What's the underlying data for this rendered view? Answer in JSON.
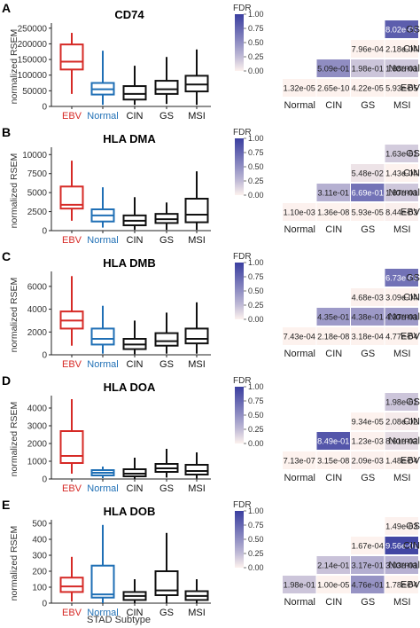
{
  "figure": {
    "x_axis_label": "STAD Subtype",
    "y_axis_label": "normalized RSEM",
    "legend_title": "FDR",
    "legend_ticks": [
      "1.00",
      "0.75",
      "0.50",
      "0.25",
      "0.00"
    ],
    "colors": {
      "EBV": "#d62a26",
      "Normal": "#1f6fb5",
      "CIN": "#111111",
      "GS": "#111111",
      "MSI": "#111111",
      "heat_low": "#fdf2ee",
      "heat_high": "#3b3fa0"
    }
  },
  "chart_data": [
    {
      "panel": "A",
      "type": "box",
      "title": "CD74",
      "categories": [
        "EBV",
        "Normal",
        "CIN",
        "GS",
        "MSI"
      ],
      "yticks": [
        "0",
        "50000",
        "100000",
        "150000",
        "200000",
        "250000"
      ],
      "ylim": [
        0,
        255000
      ],
      "boxes": [
        {
          "min": 40000,
          "q1": 118000,
          "median": 143000,
          "q3": 198000,
          "max": 235000
        },
        {
          "min": 5000,
          "q1": 38000,
          "median": 55000,
          "q3": 75000,
          "max": 178000
        },
        {
          "min": 5000,
          "q1": 22000,
          "median": 40000,
          "q3": 65000,
          "max": 130000
        },
        {
          "min": 8000,
          "q1": 40000,
          "median": 55000,
          "q3": 82000,
          "max": 158000
        },
        {
          "min": 5000,
          "q1": 48000,
          "median": 70000,
          "q3": 98000,
          "max": 182000
        }
      ],
      "heatmap": {
        "columns": [
          "Normal",
          "CIN",
          "GS",
          "MSI"
        ],
        "rows": [
          "GS",
          "CIN",
          "Normal",
          "EBV"
        ],
        "cells": [
          {
            "row": "GS",
            "col": "MSI",
            "label": "8.02e-01",
            "fdr": 0.802
          },
          {
            "row": "CIN",
            "col": "GS",
            "label": "7.96e-04",
            "fdr": 0.0008
          },
          {
            "row": "CIN",
            "col": "MSI",
            "label": "2.18e-04",
            "fdr": 0.0002
          },
          {
            "row": "Normal",
            "col": "CIN",
            "label": "5.09e-01",
            "fdr": 0.509
          },
          {
            "row": "Normal",
            "col": "GS",
            "label": "1.98e-01",
            "fdr": 0.198
          },
          {
            "row": "Normal",
            "col": "MSI",
            "label": "1.88e-01",
            "fdr": 0.188
          },
          {
            "row": "EBV",
            "col": "Normal",
            "label": "1.32e-05",
            "fdr": 1e-05
          },
          {
            "row": "EBV",
            "col": "CIN",
            "label": "2.65e-10",
            "fdr": 0.0
          },
          {
            "row": "EBV",
            "col": "GS",
            "label": "4.22e-05",
            "fdr": 4e-05
          },
          {
            "row": "EBV",
            "col": "MSI",
            "label": "5.93e-05",
            "fdr": 6e-05
          }
        ]
      }
    },
    {
      "panel": "B",
      "type": "box",
      "title": "HLA DMA",
      "categories": [
        "EBV",
        "Normal",
        "CIN",
        "GS",
        "MSI"
      ],
      "yticks": [
        "0",
        "2500",
        "5000",
        "7500",
        "10000"
      ],
      "ylim": [
        0,
        10500
      ],
      "boxes": [
        {
          "min": 1300,
          "q1": 2900,
          "median": 3400,
          "q3": 5800,
          "max": 9200
        },
        {
          "min": 400,
          "q1": 1200,
          "median": 2000,
          "q3": 2800,
          "max": 5700
        },
        {
          "min": 100,
          "q1": 700,
          "median": 1300,
          "q3": 2000,
          "max": 4400
        },
        {
          "min": 100,
          "q1": 1000,
          "median": 1500,
          "q3": 2200,
          "max": 3700
        },
        {
          "min": 100,
          "q1": 1100,
          "median": 2100,
          "q3": 4200,
          "max": 7800
        }
      ],
      "heatmap": {
        "columns": [
          "Normal",
          "CIN",
          "GS",
          "MSI"
        ],
        "rows": [
          "GS",
          "CIN",
          "Normal",
          "EBV"
        ],
        "cells": [
          {
            "row": "GS",
            "col": "MSI",
            "label": "1.63e-01",
            "fdr": 0.163
          },
          {
            "row": "CIN",
            "col": "GS",
            "label": "5.48e-02",
            "fdr": 0.0548
          },
          {
            "row": "CIN",
            "col": "MSI",
            "label": "1.43e-04",
            "fdr": 0.0001
          },
          {
            "row": "Normal",
            "col": "CIN",
            "label": "3.11e-01",
            "fdr": 0.311
          },
          {
            "row": "Normal",
            "col": "GS",
            "label": "6.69e-01",
            "fdr": 0.669
          },
          {
            "row": "Normal",
            "col": "MSI",
            "label": "1.87e-01",
            "fdr": 0.187
          },
          {
            "row": "EBV",
            "col": "Normal",
            "label": "1.10e-03",
            "fdr": 0.0011
          },
          {
            "row": "EBV",
            "col": "CIN",
            "label": "1.36e-08",
            "fdr": 0.0
          },
          {
            "row": "EBV",
            "col": "GS",
            "label": "5.93e-05",
            "fdr": 6e-05
          },
          {
            "row": "EBV",
            "col": "MSI",
            "label": "8.44e-03",
            "fdr": 0.0084
          }
        ]
      }
    },
    {
      "panel": "C",
      "type": "box",
      "title": "HLA DMB",
      "categories": [
        "EBV",
        "Normal",
        "CIN",
        "GS",
        "MSI"
      ],
      "yticks": [
        "0",
        "2000",
        "4000",
        "6000"
      ],
      "ylim": [
        0,
        7000
      ],
      "boxes": [
        {
          "min": 800,
          "q1": 2300,
          "median": 3000,
          "q3": 3800,
          "max": 6900
        },
        {
          "min": 100,
          "q1": 900,
          "median": 1400,
          "q3": 2300,
          "max": 4300
        },
        {
          "min": 50,
          "q1": 500,
          "median": 900,
          "q3": 1400,
          "max": 3000
        },
        {
          "min": 100,
          "q1": 800,
          "median": 1200,
          "q3": 1900,
          "max": 3700
        },
        {
          "min": 100,
          "q1": 1000,
          "median": 1400,
          "q3": 2300,
          "max": 4600
        }
      ],
      "heatmap": {
        "columns": [
          "Normal",
          "CIN",
          "GS",
          "MSI"
        ],
        "rows": [
          "GS",
          "CIN",
          "Normal",
          "EBV"
        ],
        "cells": [
          {
            "row": "GS",
            "col": "MSI",
            "label": "6.73e-01",
            "fdr": 0.673
          },
          {
            "row": "CIN",
            "col": "GS",
            "label": "4.68e-03",
            "fdr": 0.0047
          },
          {
            "row": "CIN",
            "col": "MSI",
            "label": "3.09e-04",
            "fdr": 0.0003
          },
          {
            "row": "Normal",
            "col": "CIN",
            "label": "4.35e-01",
            "fdr": 0.435
          },
          {
            "row": "Normal",
            "col": "GS",
            "label": "4.38e-01",
            "fdr": 0.438
          },
          {
            "row": "Normal",
            "col": "MSI",
            "label": "4.37e-01",
            "fdr": 0.437
          },
          {
            "row": "EBV",
            "col": "Normal",
            "label": "7.43e-04",
            "fdr": 0.0007
          },
          {
            "row": "EBV",
            "col": "CIN",
            "label": "2.18e-08",
            "fdr": 0.0
          },
          {
            "row": "EBV",
            "col": "GS",
            "label": "3.18e-04",
            "fdr": 0.0003
          },
          {
            "row": "EBV",
            "col": "MSI",
            "label": "4.77e-04",
            "fdr": 0.0005
          }
        ]
      }
    },
    {
      "panel": "D",
      "type": "box",
      "title": "HLA DOA",
      "categories": [
        "EBV",
        "Normal",
        "CIN",
        "GS",
        "MSI"
      ],
      "yticks": [
        "0",
        "1000",
        "2000",
        "3000",
        "4000"
      ],
      "ylim": [
        0,
        4500
      ],
      "boxes": [
        {
          "min": 300,
          "q1": 900,
          "median": 1300,
          "q3": 2700,
          "max": 4500
        },
        {
          "min": 50,
          "q1": 200,
          "median": 350,
          "q3": 500,
          "max": 700
        },
        {
          "min": 20,
          "q1": 150,
          "median": 300,
          "q3": 550,
          "max": 1200
        },
        {
          "min": 80,
          "q1": 400,
          "median": 600,
          "q3": 850,
          "max": 1700
        },
        {
          "min": 30,
          "q1": 250,
          "median": 450,
          "q3": 800,
          "max": 1500
        }
      ],
      "heatmap": {
        "columns": [
          "Normal",
          "CIN",
          "GS",
          "MSI"
        ],
        "rows": [
          "GS",
          "CIN",
          "Normal",
          "EBV"
        ],
        "cells": [
          {
            "row": "GS",
            "col": "MSI",
            "label": "1.98e-01",
            "fdr": 0.198
          },
          {
            "row": "CIN",
            "col": "GS",
            "label": "9.34e-05",
            "fdr": 0.0001
          },
          {
            "row": "CIN",
            "col": "MSI",
            "label": "2.08e-02",
            "fdr": 0.0208
          },
          {
            "row": "Normal",
            "col": "CIN",
            "label": "8.49e-01",
            "fdr": 0.849
          },
          {
            "row": "Normal",
            "col": "GS",
            "label": "1.23e-03",
            "fdr": 0.0012
          },
          {
            "row": "Normal",
            "col": "MSI",
            "label": "8.61e-02",
            "fdr": 0.0861
          },
          {
            "row": "EBV",
            "col": "Normal",
            "label": "7.13e-07",
            "fdr": 0.0
          },
          {
            "row": "EBV",
            "col": "CIN",
            "label": "3.15e-08",
            "fdr": 0.0
          },
          {
            "row": "EBV",
            "col": "GS",
            "label": "2.09e-03",
            "fdr": 0.0021
          },
          {
            "row": "EBV",
            "col": "MSI",
            "label": "1.48e-04",
            "fdr": 0.0001
          }
        ]
      }
    },
    {
      "panel": "E",
      "type": "box",
      "title": "HLA DOB",
      "categories": [
        "EBV",
        "Normal",
        "CIN",
        "GS",
        "MSI"
      ],
      "yticks": [
        "0",
        "100",
        "200",
        "300",
        "400",
        "500"
      ],
      "ylim": [
        0,
        500
      ],
      "boxes": [
        {
          "min": 10,
          "q1": 70,
          "median": 105,
          "q3": 160,
          "max": 290
        },
        {
          "min": 0,
          "q1": 35,
          "median": 55,
          "q3": 235,
          "max": 490
        },
        {
          "min": 0,
          "q1": 20,
          "median": 45,
          "q3": 70,
          "max": 150
        },
        {
          "min": 0,
          "q1": 50,
          "median": 80,
          "q3": 200,
          "max": 440
        },
        {
          "min": 0,
          "q1": 20,
          "median": 45,
          "q3": 75,
          "max": 150
        }
      ],
      "heatmap": {
        "columns": [
          "Normal",
          "CIN",
          "GS",
          "MSI"
        ],
        "rows": [
          "GS",
          "CIN",
          "Normal",
          "EBV"
        ],
        "cells": [
          {
            "row": "GS",
            "col": "MSI",
            "label": "1.49e-03",
            "fdr": 0.0015
          },
          {
            "row": "CIN",
            "col": "GS",
            "label": "1.67e-04",
            "fdr": 0.0002
          },
          {
            "row": "CIN",
            "col": "MSI",
            "label": "9.56e-01",
            "fdr": 0.956
          },
          {
            "row": "Normal",
            "col": "CIN",
            "label": "2.14e-01",
            "fdr": 0.214
          },
          {
            "row": "Normal",
            "col": "GS",
            "label": "3.17e-01",
            "fdr": 0.317
          },
          {
            "row": "Normal",
            "col": "MSI",
            "label": "3.03e-01",
            "fdr": 0.303
          },
          {
            "row": "EBV",
            "col": "Normal",
            "label": "1.98e-01",
            "fdr": 0.198
          },
          {
            "row": "EBV",
            "col": "CIN",
            "label": "1.00e-05",
            "fdr": 1e-05
          },
          {
            "row": "EBV",
            "col": "GS",
            "label": "4.76e-01",
            "fdr": 0.476
          },
          {
            "row": "EBV",
            "col": "MSI",
            "label": "1.78e-04",
            "fdr": 0.0002
          }
        ]
      }
    }
  ]
}
